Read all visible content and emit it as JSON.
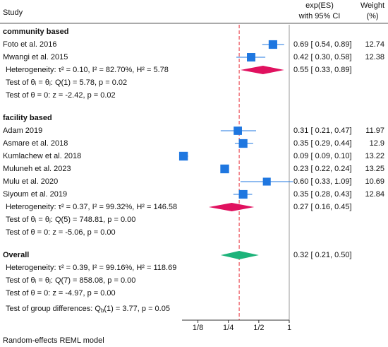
{
  "chart_data": {
    "type": "forest",
    "headers": {
      "study": "Study",
      "es": [
        "exp(ES)",
        "with 95% CI"
      ],
      "weight": [
        "Weight",
        "(%)"
      ]
    },
    "groups": [
      {
        "name": "community based",
        "studies": [
          {
            "name": "Foto et al. 2016",
            "es": 0.69,
            "lo": 0.54,
            "hi": 0.89,
            "label": "0.69 [ 0.54, 0.89]",
            "weight": 12.74
          },
          {
            "name": "Mwangi et al. 2015",
            "es": 0.42,
            "lo": 0.3,
            "hi": 0.58,
            "label": "0.42 [ 0.30, 0.58]",
            "weight": 12.38
          }
        ],
        "summary": {
          "es": 0.55,
          "lo": 0.33,
          "hi": 0.89,
          "label": "0.55 [ 0.33, 0.89]"
        },
        "heterogeneity": "Heterogeneity: τ² = 0.10, I² = 82.70%, H² = 5.78",
        "test_homogeneity": "Test of θᵢ = θⱼ: Q(1) = 5.78, p = 0.02",
        "test_effect": "Test of θ = 0: z = -2.42, p = 0.02"
      },
      {
        "name": "facility based",
        "studies": [
          {
            "name": "Adam 2019",
            "es": 0.31,
            "lo": 0.21,
            "hi": 0.47,
            "label": "0.31 [ 0.21, 0.47]",
            "weight": 11.97
          },
          {
            "name": "Asmare et al. 2018",
            "es": 0.35,
            "lo": 0.29,
            "hi": 0.44,
            "label": "0.35 [ 0.29, 0.44]",
            "weight": 12.9
          },
          {
            "name": "Kumlachew et al. 2018",
            "es": 0.09,
            "lo": 0.09,
            "hi": 0.1,
            "label": "0.09 [ 0.09, 0.10]",
            "weight": 13.22
          },
          {
            "name": "Muluneh et al. 2023",
            "es": 0.23,
            "lo": 0.22,
            "hi": 0.24,
            "label": "0.23 [ 0.22, 0.24]",
            "weight": 13.25
          },
          {
            "name": "Mulu et al. 2020",
            "es": 0.6,
            "lo": 0.33,
            "hi": 1.09,
            "label": "0.60 [ 0.33, 1.09]",
            "weight": 10.69
          },
          {
            "name": "Siyoum et al. 2019",
            "es": 0.35,
            "lo": 0.28,
            "hi": 0.43,
            "label": "0.35 [ 0.28, 0.43]",
            "weight": 12.84
          }
        ],
        "summary": {
          "es": 0.27,
          "lo": 0.16,
          "hi": 0.45,
          "label": "0.27 [ 0.16, 0.45]"
        },
        "heterogeneity": "Heterogeneity: τ² = 0.37, I² = 99.32%, H² = 146.58",
        "test_homogeneity": "Test of θᵢ = θⱼ: Q(5) = 748.81, p = 0.00",
        "test_effect": "Test of θ = 0: z = -5.06, p = 0.00"
      }
    ],
    "overall": {
      "name": "Overall",
      "es": 0.32,
      "lo": 0.21,
      "hi": 0.5,
      "label": "0.32 [ 0.21, 0.50]",
      "heterogeneity": "Heterogeneity: τ² = 0.39, I² = 99.16%, H² = 118.69",
      "test_homogeneity": "Test of θᵢ = θⱼ: Q(7) = 858.08, p = 0.00",
      "test_effect": "Test of θ = 0: z = -4.97, p = 0.00"
    },
    "group_test": {
      "before": "Test of group differences: Q",
      "subscript": "b",
      "after": "(1) = 3.77, p = 0.05"
    },
    "footnote": "Random-effects REML model",
    "xscale": "log",
    "xlim": [
      0.087,
      1
    ],
    "xticks": [
      {
        "value": 0.125,
        "label": "1/8"
      },
      {
        "value": 0.25,
        "label": "1/4"
      },
      {
        "value": 0.5,
        "label": "1/2"
      },
      1
    ],
    "colors": {
      "study": "#1f77e0",
      "subgroup": "#e0115f",
      "overall": "#1db37a",
      "overall_line": "#e8303a",
      "null_line": "#9a9a9a"
    }
  }
}
